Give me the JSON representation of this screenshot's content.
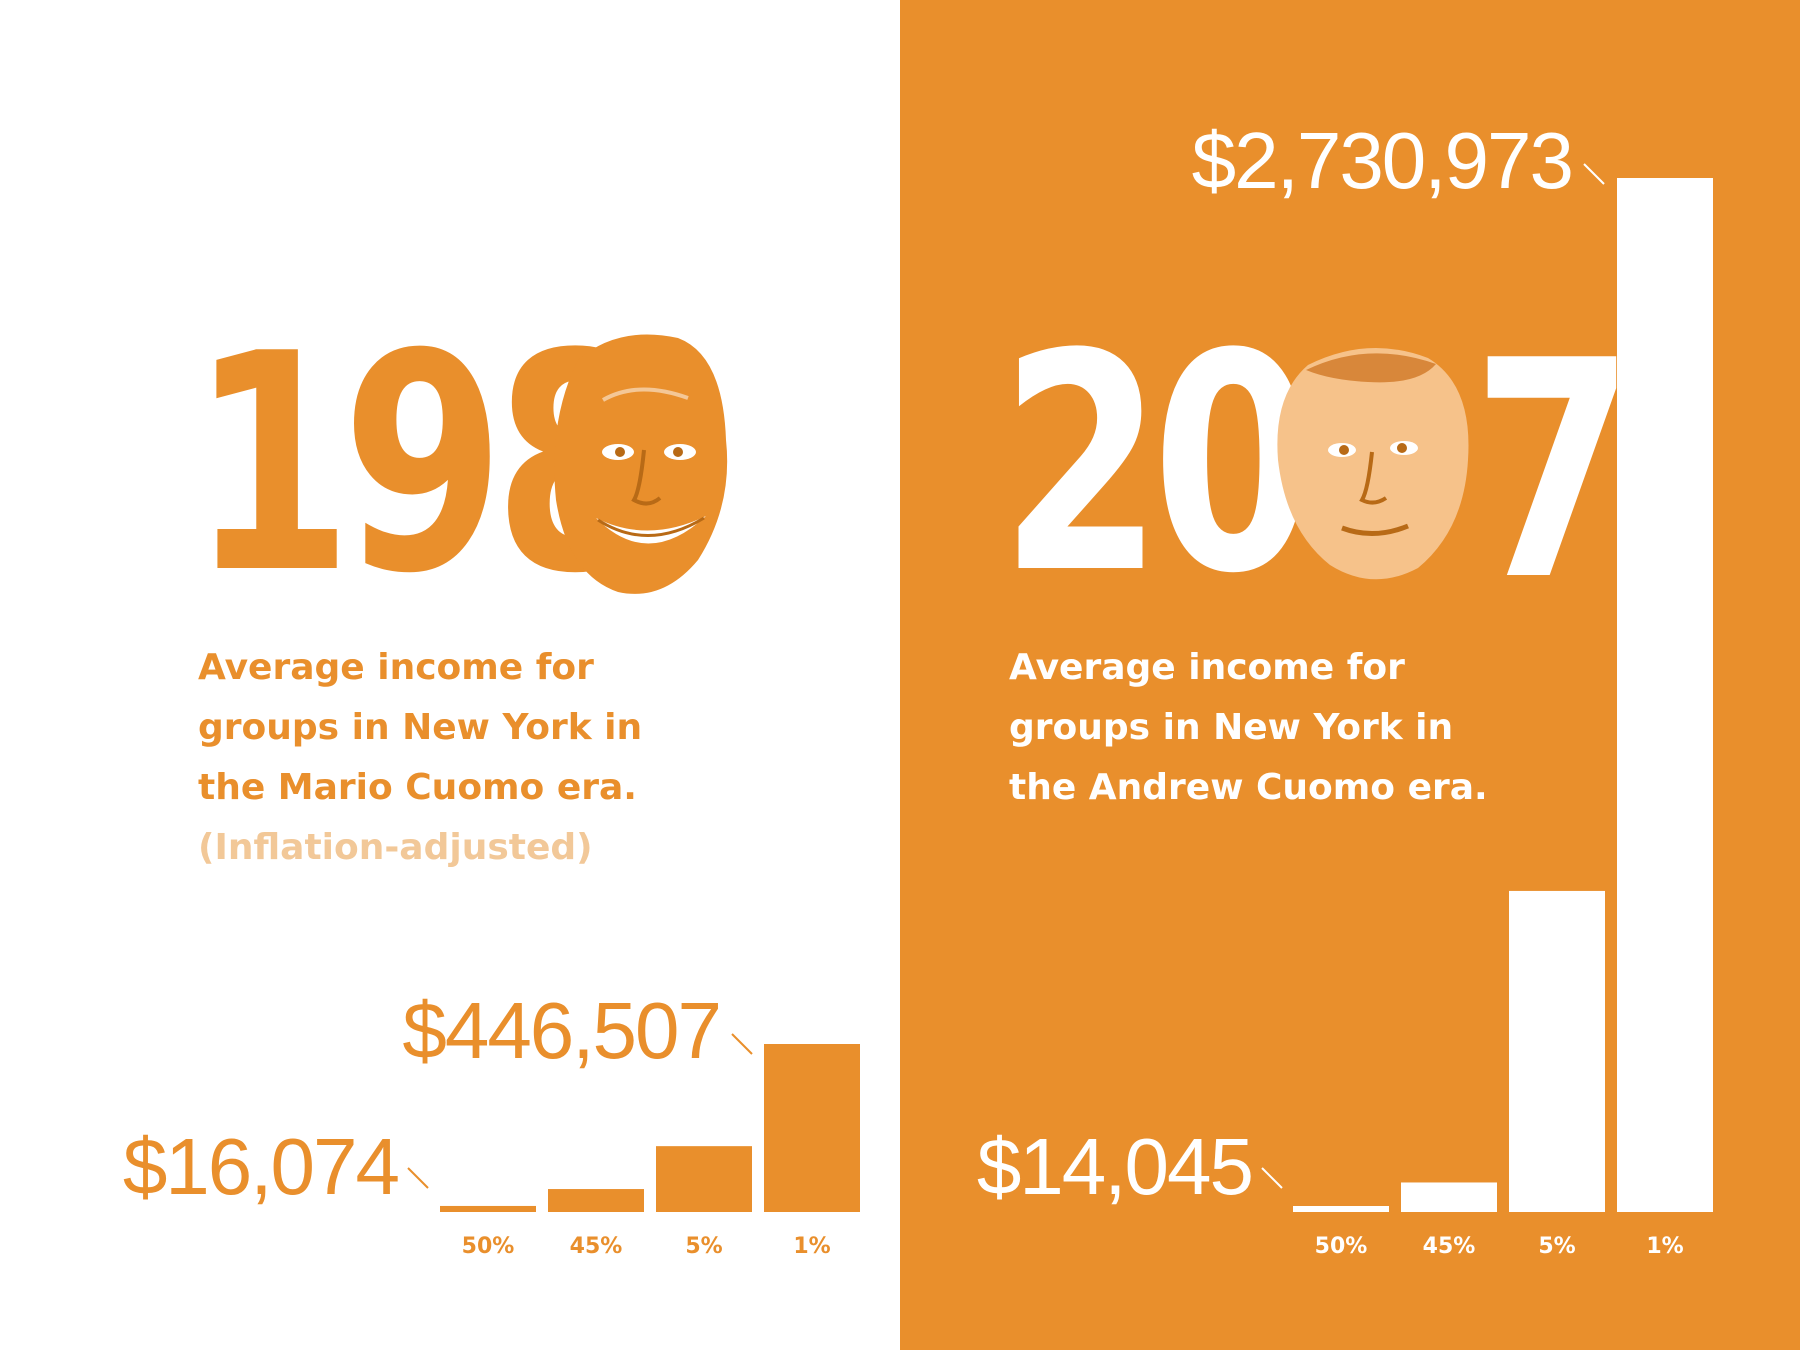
{
  "colors": {
    "accent": "#e98f2c",
    "white": "#ffffff",
    "muted_note": "#f2c898"
  },
  "left": {
    "year_digits": "198",
    "face_icon": "mario-cuomo-portrait",
    "description_lines": [
      "Average income for",
      "groups in New York in",
      "the Mario Cuomo era."
    ],
    "note": "(Inflation-adjusted)",
    "min_label": "$16,074",
    "max_label": "$446,507"
  },
  "right": {
    "year_digits_before": "20",
    "year_digits_after": "7",
    "face_icon": "andrew-cuomo-portrait",
    "description_lines": [
      "Average income for",
      "groups in New York in",
      "the Andrew Cuomo era."
    ],
    "min_label": "$14,045",
    "max_label": "$2,730,973"
  },
  "chart_data": [
    {
      "type": "bar",
      "categories": [
        "50%",
        "45%",
        "5%",
        "1%"
      ],
      "values": [
        16074,
        61000,
        175000,
        446507
      ],
      "title": "",
      "xlabel": "",
      "ylabel": "",
      "annotations": [
        "$16,074",
        "$446,507"
      ],
      "grid": false
    },
    {
      "type": "bar",
      "categories": [
        "50%",
        "45%",
        "5%",
        "1%"
      ],
      "values": [
        14045,
        78000,
        848000,
        2730973
      ],
      "title": "",
      "xlabel": "",
      "ylabel": "",
      "annotations": [
        "$14,045",
        "$2,730,973"
      ],
      "grid": false
    }
  ]
}
